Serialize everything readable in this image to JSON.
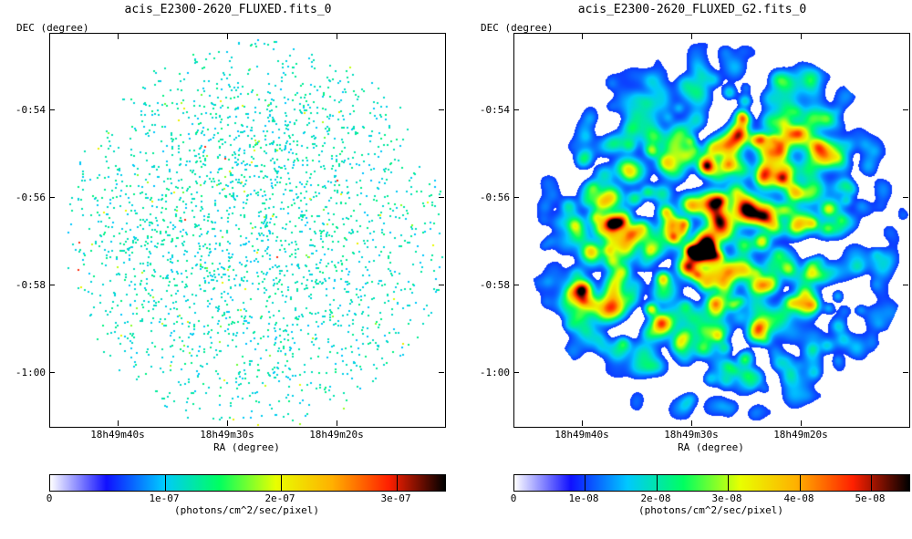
{
  "left": {
    "title": "acis_E2300-2620_FLUXED.fits_0",
    "dec_label": "DEC (degree)",
    "ra_label": "RA (degree)",
    "dec_ticks": [
      "-0:54",
      "-0:56",
      "-0:58",
      "-1:00"
    ],
    "ra_ticks": [
      "18h49m40s",
      "18h49m30s",
      "18h49m20s"
    ],
    "colorbar_ticks": [
      "0",
      "1e-07",
      "2e-07",
      "3e-07"
    ],
    "colorbar_unit": "(photons/cm^2/sec/pixel)",
    "image_style": "sparse-events"
  },
  "right": {
    "title": "acis_E2300-2620_FLUXED_G2.fits_0",
    "dec_label": "DEC (degree)",
    "ra_label": "RA (degree)",
    "dec_ticks": [
      "-0:54",
      "-0:56",
      "-0:58",
      "-1:00"
    ],
    "ra_ticks": [
      "18h49m40s",
      "18h49m30s",
      "18h49m20s"
    ],
    "colorbar_ticks": [
      "0",
      "1e-08",
      "2e-08",
      "3e-08",
      "4e-08",
      "5e-08"
    ],
    "colorbar_unit": "(photons/cm^2/sec/pixel)",
    "image_style": "smoothed"
  },
  "colormap": [
    "#ffffff",
    "#1010ff",
    "#00c8ff",
    "#00ff60",
    "#e8ff00",
    "#ffb000",
    "#ff2000",
    "#000000"
  ]
}
